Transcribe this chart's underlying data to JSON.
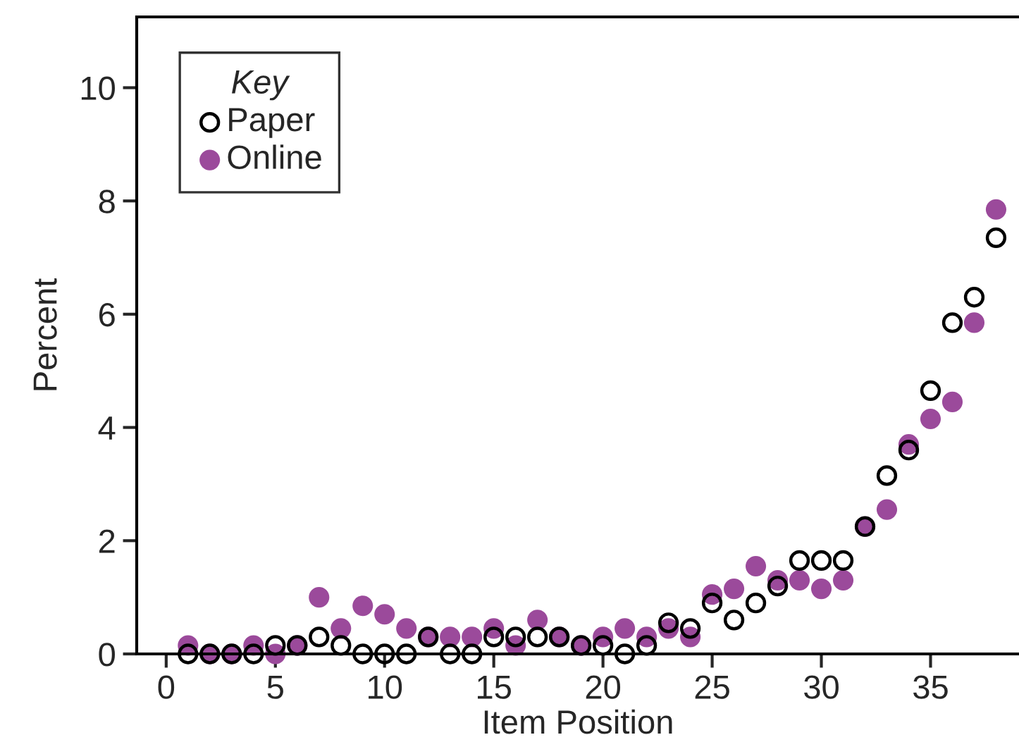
{
  "chart_data": {
    "type": "scatter",
    "xlabel": "Item Position",
    "ylabel": "Percent",
    "legend_title": "Key",
    "legend": "top left",
    "marker": "circle",
    "grid": false,
    "x": [
      1,
      2,
      3,
      4,
      5,
      6,
      7,
      8,
      9,
      10,
      11,
      12,
      13,
      14,
      15,
      16,
      17,
      18,
      19,
      20,
      21,
      22,
      23,
      24,
      25,
      26,
      27,
      28,
      29,
      30,
      31,
      32,
      33,
      34,
      35,
      36,
      37,
      38
    ],
    "xlim": [
      -1.35,
      39.05
    ],
    "xticks": [
      0,
      5,
      10,
      15,
      20,
      25,
      30,
      35
    ],
    "ylim": [
      0,
      11.25
    ],
    "yticks": [
      0,
      2,
      4,
      6,
      8,
      10
    ],
    "series": [
      {
        "name": "Paper",
        "color": "#000000",
        "values": [
          0,
          0,
          0,
          0,
          0.15,
          0.15,
          0.3,
          0.15,
          0,
          0,
          0,
          0.3,
          0,
          0,
          0.3,
          0.3,
          0.3,
          0.3,
          0.15,
          0.15,
          0,
          0.15,
          0.55,
          0.45,
          0.9,
          0.6,
          0.9,
          1.2,
          1.65,
          1.65,
          1.65,
          2.25,
          3.15,
          3.6,
          4.65,
          5.85,
          6.3,
          7.35
        ]
      },
      {
        "name": "Online",
        "color": "#9b4a9b",
        "values": [
          0.15,
          0,
          0,
          0.15,
          0,
          0.15,
          1.0,
          0.45,
          0.85,
          0.7,
          0.45,
          0.3,
          0.3,
          0.3,
          0.45,
          0.15,
          0.6,
          0.3,
          0.15,
          0.3,
          0.45,
          0.3,
          0.45,
          0.3,
          1.05,
          1.15,
          1.55,
          1.3,
          1.3,
          1.15,
          1.3,
          2.25,
          2.55,
          3.7,
          4.15,
          4.45,
          5.85,
          7.85
        ]
      }
    ]
  }
}
